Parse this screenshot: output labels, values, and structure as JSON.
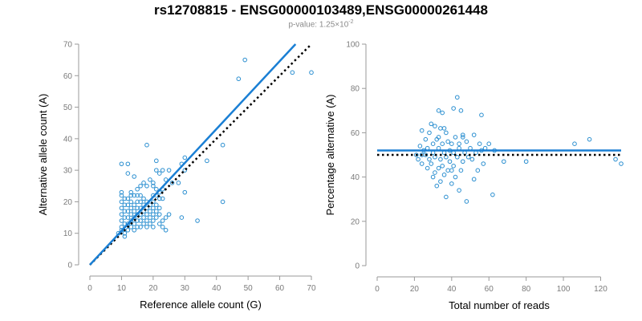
{
  "title": "rs12708815 - ENSG00000103489,ENSG00000261448",
  "subtitle": {
    "prefix": "p-value: 1.25×10",
    "exponent": "-2"
  },
  "colors": {
    "points": "#2b8fd0",
    "fit_line": "#1a7fd4",
    "reference_line": "#000000",
    "axis": "#9a9a9a"
  },
  "chart_data": [
    {
      "type": "scatter",
      "id": "counts",
      "xlabel": "Reference allele count (G)",
      "ylabel": "Alternative allele count (A)",
      "xlim": [
        0,
        70
      ],
      "ylim": [
        0,
        70
      ],
      "xticks": [
        0,
        10,
        20,
        30,
        40,
        50,
        60,
        70
      ],
      "yticks": [
        0,
        10,
        20,
        30,
        40,
        50,
        60,
        70
      ],
      "fit_line": {
        "x": [
          0,
          65
        ],
        "y": [
          0,
          70
        ]
      },
      "reference_line": {
        "x": [
          0,
          70
        ],
        "y": [
          0,
          70
        ]
      },
      "points": [
        [
          10,
          32
        ],
        [
          12,
          32
        ],
        [
          14,
          28
        ],
        [
          18,
          38
        ],
        [
          19,
          27
        ],
        [
          20,
          26
        ],
        [
          21,
          33
        ],
        [
          21,
          30
        ],
        [
          22,
          29
        ],
        [
          23,
          30
        ],
        [
          25,
          30
        ],
        [
          24,
          27
        ],
        [
          26,
          26
        ],
        [
          28,
          26
        ],
        [
          29,
          32
        ],
        [
          30,
          34
        ],
        [
          30,
          30
        ],
        [
          30,
          23
        ],
        [
          29,
          15
        ],
        [
          34,
          14
        ],
        [
          37,
          33
        ],
        [
          42,
          20
        ],
        [
          42,
          38
        ],
        [
          47,
          59
        ],
        [
          49,
          65
        ],
        [
          64,
          61
        ],
        [
          70,
          61
        ],
        [
          10,
          23
        ],
        [
          10,
          22
        ],
        [
          10,
          20
        ],
        [
          10,
          18
        ],
        [
          10,
          16
        ],
        [
          10,
          14
        ],
        [
          10,
          12
        ],
        [
          10,
          11
        ],
        [
          11,
          10
        ],
        [
          12,
          11
        ],
        [
          11,
          13
        ],
        [
          11,
          15
        ],
        [
          11,
          17
        ],
        [
          11,
          19
        ],
        [
          11,
          21
        ],
        [
          12,
          13
        ],
        [
          12,
          15
        ],
        [
          12,
          17
        ],
        [
          12,
          19
        ],
        [
          12,
          21
        ],
        [
          13,
          12
        ],
        [
          13,
          14
        ],
        [
          13,
          16
        ],
        [
          13,
          18
        ],
        [
          13,
          20
        ],
        [
          13,
          22
        ],
        [
          14,
          11
        ],
        [
          14,
          13
        ],
        [
          14,
          15
        ],
        [
          14,
          17
        ],
        [
          14,
          19
        ],
        [
          14,
          22
        ],
        [
          15,
          12
        ],
        [
          15,
          14
        ],
        [
          15,
          16
        ],
        [
          15,
          18
        ],
        [
          15,
          20
        ],
        [
          15,
          22
        ],
        [
          16,
          12
        ],
        [
          16,
          14
        ],
        [
          16,
          16
        ],
        [
          16,
          18
        ],
        [
          16,
          20
        ],
        [
          16,
          22
        ],
        [
          17,
          13
        ],
        [
          17,
          15
        ],
        [
          17,
          17
        ],
        [
          17,
          19
        ],
        [
          17,
          21
        ],
        [
          18,
          12
        ],
        [
          18,
          14
        ],
        [
          18,
          16
        ],
        [
          18,
          18
        ],
        [
          18,
          20
        ],
        [
          19,
          13
        ],
        [
          19,
          15
        ],
        [
          19,
          17
        ],
        [
          19,
          19
        ],
        [
          20,
          12
        ],
        [
          20,
          14
        ],
        [
          20,
          16
        ],
        [
          20,
          18
        ],
        [
          20,
          20
        ],
        [
          20,
          22
        ],
        [
          21,
          15
        ],
        [
          21,
          17
        ],
        [
          21,
          19
        ],
        [
          21,
          22
        ],
        [
          22,
          13
        ],
        [
          22,
          16
        ],
        [
          22,
          18
        ],
        [
          22,
          21
        ],
        [
          23,
          12
        ],
        [
          23,
          14
        ],
        [
          23,
          24
        ],
        [
          24,
          11
        ],
        [
          24,
          15
        ],
        [
          25,
          16
        ],
        [
          20,
          25
        ],
        [
          21,
          24
        ],
        [
          22,
          23
        ],
        [
          23,
          21
        ],
        [
          18,
          25
        ],
        [
          17,
          26
        ],
        [
          13,
          23
        ],
        [
          15,
          24
        ],
        [
          16,
          25
        ],
        [
          12,
          29
        ],
        [
          11,
          9
        ],
        [
          9,
          10
        ]
      ]
    },
    {
      "type": "scatter",
      "id": "percentage",
      "xlabel": "Total number of reads",
      "ylabel": "Percentage alternative (A)",
      "xlim": [
        0,
        131
      ],
      "ylim": [
        0,
        100
      ],
      "xticks": [
        0,
        20,
        40,
        60,
        80,
        100,
        120
      ],
      "yticks": [
        0,
        20,
        40,
        60,
        80,
        100
      ],
      "fit_line": {
        "x": [
          0,
          131
        ],
        "y": [
          52,
          52
        ]
      },
      "reference_line": {
        "x": [
          0,
          131
        ],
        "y": [
          50,
          50
        ]
      },
      "points": [
        [
          43,
          76
        ],
        [
          41,
          71
        ],
        [
          45,
          70
        ],
        [
          33,
          70
        ],
        [
          35,
          69
        ],
        [
          56,
          68
        ],
        [
          29,
          64
        ],
        [
          31,
          63
        ],
        [
          34,
          62
        ],
        [
          24,
          61
        ],
        [
          28,
          60
        ],
        [
          37,
          60
        ],
        [
          42,
          58
        ],
        [
          46,
          58
        ],
        [
          52,
          59
        ],
        [
          26,
          57
        ],
        [
          32,
          57
        ],
        [
          38,
          56
        ],
        [
          48,
          56
        ],
        [
          30,
          55
        ],
        [
          35,
          55
        ],
        [
          40,
          55
        ],
        [
          55,
          55
        ],
        [
          23,
          54
        ],
        [
          27,
          53
        ],
        [
          33,
          53
        ],
        [
          44,
          53
        ],
        [
          50,
          53
        ],
        [
          58,
          53
        ],
        [
          25,
          52
        ],
        [
          30,
          51
        ],
        [
          36,
          51
        ],
        [
          41,
          51
        ],
        [
          47,
          51
        ],
        [
          53,
          51
        ],
        [
          21,
          50
        ],
        [
          26,
          50
        ],
        [
          31,
          49
        ],
        [
          37,
          49
        ],
        [
          43,
          49
        ],
        [
          49,
          49
        ],
        [
          22,
          48
        ],
        [
          28,
          48
        ],
        [
          34,
          48
        ],
        [
          39,
          47
        ],
        [
          46,
          47
        ],
        [
          24,
          46
        ],
        [
          29,
          46
        ],
        [
          35,
          45
        ],
        [
          41,
          45
        ],
        [
          27,
          44
        ],
        [
          33,
          44
        ],
        [
          38,
          43
        ],
        [
          45,
          43
        ],
        [
          31,
          42
        ],
        [
          36,
          41
        ],
        [
          42,
          40
        ],
        [
          52,
          39
        ],
        [
          34,
          38
        ],
        [
          40,
          37
        ],
        [
          32,
          36
        ],
        [
          44,
          34
        ],
        [
          37,
          31
        ],
        [
          48,
          29
        ],
        [
          54,
          43
        ],
        [
          62,
          32
        ],
        [
          60,
          55
        ],
        [
          63,
          52
        ],
        [
          68,
          47
        ],
        [
          80,
          47
        ],
        [
          106,
          55
        ],
        [
          114,
          57
        ],
        [
          128,
          48
        ],
        [
          131,
          46
        ],
        [
          56,
          52
        ],
        [
          57,
          46
        ],
        [
          51,
          48
        ],
        [
          46,
          59
        ],
        [
          39,
          52
        ],
        [
          36,
          62
        ],
        [
          30,
          40
        ],
        [
          24,
          50
        ],
        [
          33,
          58
        ],
        [
          40,
          43
        ],
        [
          44,
          55
        ]
      ]
    }
  ]
}
